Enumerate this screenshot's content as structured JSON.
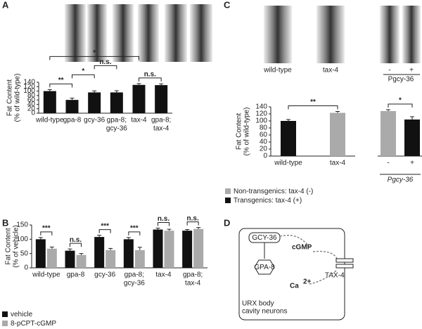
{
  "chart_data": [
    {
      "panel": "A",
      "type": "bar",
      "ylabel": [
        "Fat Content",
        "(% of wild-type)"
      ],
      "categories": [
        [
          "wild-type"
        ],
        [
          "gpa-8"
        ],
        [
          "gcy-36"
        ],
        [
          "gpa-8;",
          "gcy-36"
        ],
        [
          "tax-4"
        ],
        [
          "gpa-8;",
          "tax-4"
        ]
      ],
      "values": [
        100,
        60,
        94,
        94,
        128,
        127
      ],
      "errors": [
        7,
        8,
        7,
        8,
        6,
        6
      ],
      "color": "#111111",
      "ylim": [
        0,
        140
      ],
      "yticks": [
        0,
        20,
        40,
        60,
        80,
        100,
        120,
        140
      ],
      "annotations": [
        {
          "from": 0,
          "to": 1,
          "label": "**"
        },
        {
          "from": 1,
          "to": 2,
          "label": "*"
        },
        {
          "from": 2,
          "to": 3,
          "label": "n.s."
        },
        {
          "from": 4,
          "to": 5,
          "label": "n.s."
        },
        {
          "from": 0,
          "to": 4,
          "label": "*"
        }
      ]
    },
    {
      "panel": "B",
      "type": "grouped_bar",
      "ylabel": [
        "Fat Content",
        "(% of vehicle)"
      ],
      "categories": [
        [
          "wild-type"
        ],
        [
          "gpa-8"
        ],
        [
          "gcy-36"
        ],
        [
          "gpa-8;",
          "gcy-36"
        ],
        [
          "tax-4"
        ],
        [
          "gpa-8;",
          "tax-4"
        ]
      ],
      "series": [
        {
          "name": "vehicle",
          "color": "#111111",
          "values": [
            100,
            60,
            108,
            100,
            134,
            130
          ],
          "errors": [
            6,
            6,
            6,
            6,
            5,
            4
          ]
        },
        {
          "name": "8-pCPT-cGMP",
          "color": "#aaaaaa",
          "values": [
            67,
            45,
            62,
            62,
            130,
            136
          ],
          "errors": [
            6,
            5,
            6,
            10,
            5,
            5
          ]
        }
      ],
      "ylim": [
        0,
        150
      ],
      "yticks": [
        0,
        50,
        100,
        150
      ],
      "legend": "bottom-left",
      "annotations": [
        {
          "category": 0,
          "label": "***"
        },
        {
          "category": 1,
          "label": "n.s."
        },
        {
          "category": 2,
          "label": "***"
        },
        {
          "category": 3,
          "label": "***"
        },
        {
          "category": 4,
          "label": "n.s."
        },
        {
          "category": 5,
          "label": "n.s."
        }
      ]
    },
    {
      "panel": "C",
      "type": "bar",
      "ylabel": [
        "Fat Content",
        "(% of wild-type)"
      ],
      "categories": [
        [
          "wild-type"
        ],
        [
          "tax-4"
        ],
        [
          "-"
        ],
        [
          "+"
        ]
      ],
      "group_label": {
        "label": "Pgcy-36",
        "categories": [
          2,
          3
        ]
      },
      "values": [
        100,
        123,
        128,
        104
      ],
      "errors": [
        4,
        4,
        4,
        8
      ],
      "colors": [
        "#111111",
        "#aaaaaa",
        "#aaaaaa",
        "#111111"
      ],
      "ylim": [
        0,
        140
      ],
      "yticks": [
        0,
        20,
        40,
        60,
        80,
        100,
        120,
        140
      ],
      "annotations": [
        {
          "from": 0,
          "to": 1,
          "label": "**"
        },
        {
          "from": 2,
          "to": 3,
          "label": "*"
        }
      ],
      "legend": [
        {
          "name": "Non-transgenics: tax-4 (-)",
          "color": "#aaaaaa"
        },
        {
          "name": "Transgenics: tax-4 (+)",
          "color": "#111111"
        }
      ],
      "image_labels": [
        "wild-type",
        "tax-4",
        "-",
        "+",
        "Pgcy-36"
      ]
    }
  ],
  "diagram": {
    "panel": "D",
    "labels": {
      "gcy": "GCY-36",
      "cgmp": "cGMP",
      "gpa": "GPA-8",
      "tax": "TAX-4",
      "ca": "Ca",
      "ca_charge": "2+",
      "cell": [
        "URX body",
        "cavity neurons"
      ]
    }
  }
}
